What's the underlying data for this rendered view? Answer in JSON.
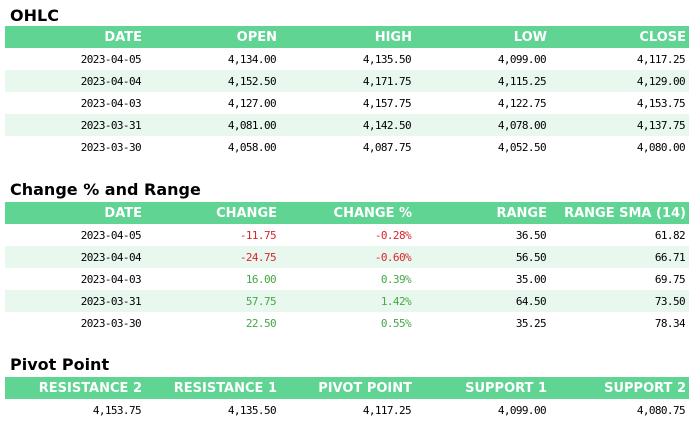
{
  "ohlc": {
    "title": "OHLC",
    "headers": [
      "DATE",
      "OPEN",
      "HIGH",
      "LOW",
      "CLOSE"
    ],
    "rows": [
      [
        "2023-04-05",
        "4,134.00",
        "4,135.50",
        "4,099.00",
        "4,117.25"
      ],
      [
        "2023-04-04",
        "4,152.50",
        "4,171.75",
        "4,115.25",
        "4,129.00"
      ],
      [
        "2023-04-03",
        "4,127.00",
        "4,157.75",
        "4,122.75",
        "4,153.75"
      ],
      [
        "2023-03-31",
        "4,081.00",
        "4,142.50",
        "4,078.00",
        "4,137.75"
      ],
      [
        "2023-03-30",
        "4,058.00",
        "4,087.75",
        "4,052.50",
        "4,080.00"
      ]
    ]
  },
  "change_range": {
    "title": "Change % and Range",
    "headers": [
      "DATE",
      "CHANGE",
      "CHANGE %",
      "RANGE",
      "RANGE SMA (14)"
    ],
    "rows": [
      [
        "2023-04-05",
        "-11.75",
        "-0.28%",
        "36.50",
        "61.82"
      ],
      [
        "2023-04-04",
        "-24.75",
        "-0.60%",
        "56.50",
        "66.71"
      ],
      [
        "2023-04-03",
        "16.00",
        "0.39%",
        "35.00",
        "69.75"
      ],
      [
        "2023-03-31",
        "57.75",
        "1.42%",
        "64.50",
        "73.50"
      ],
      [
        "2023-03-30",
        "22.50",
        "0.55%",
        "35.25",
        "78.34"
      ]
    ],
    "colors": {
      "negative": "#d9262a",
      "positive": "#45a845"
    }
  },
  "pivot": {
    "title": "Pivot Point",
    "headers": [
      "RESISTANCE 2",
      "RESISTANCE 1",
      "PIVOT POINT",
      "SUPPORT 1",
      "SUPPORT 2"
    ],
    "values": [
      "4,153.75",
      "4,135.50",
      "4,117.25",
      "4,099.00",
      "4,080.75"
    ]
  },
  "colors": {
    "header_bg": "#5fd493",
    "stripe_bg": "#e8f8ef"
  }
}
